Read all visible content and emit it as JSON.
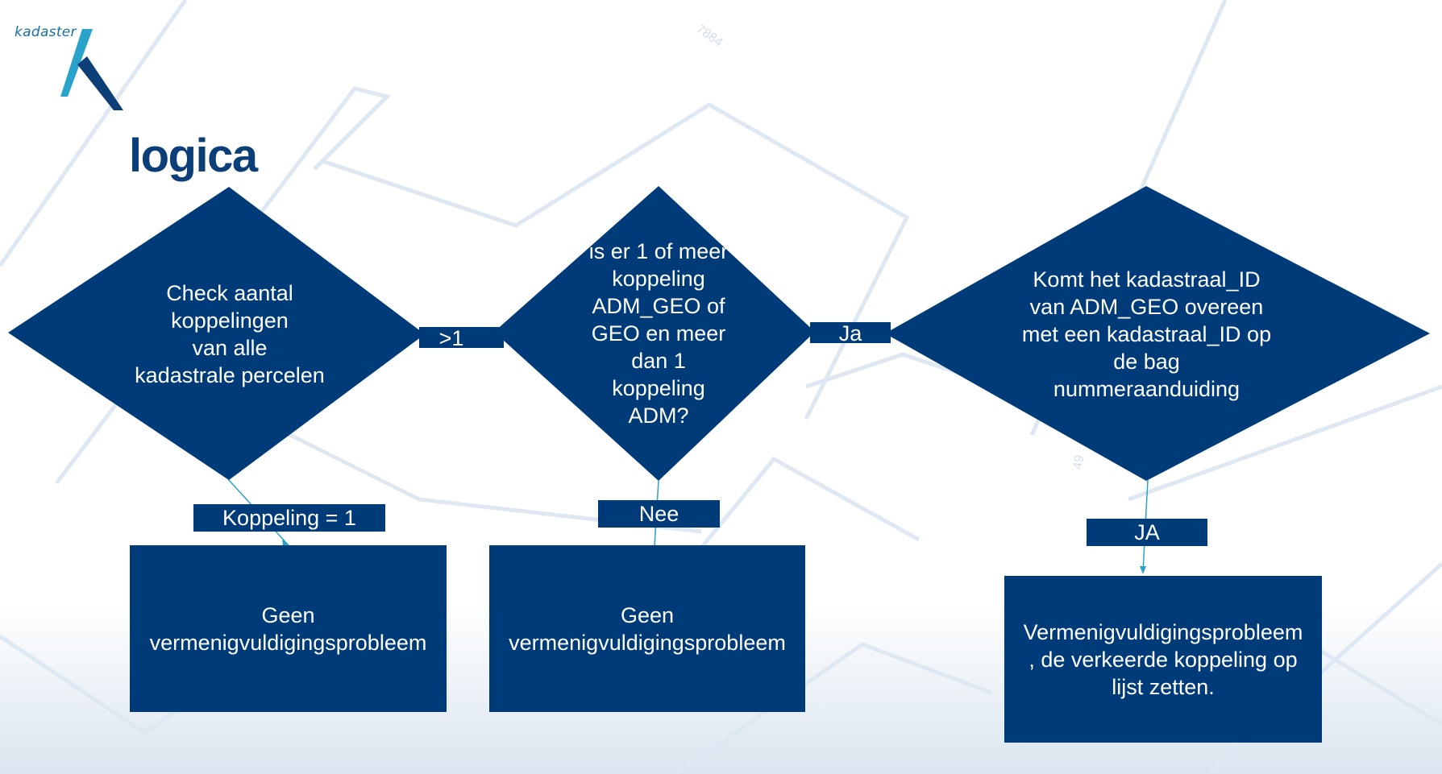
{
  "brand": {
    "logo_text": "kadaster"
  },
  "page": {
    "title": "logica"
  },
  "watermarks": [
    "7884",
    "49"
  ],
  "diagram": {
    "decision_1": {
      "lines": [
        "Check aantal",
        "koppelingen",
        "van alle",
        "kadastrale percelen"
      ]
    },
    "decision_2": {
      "lines": [
        "is er 1 of meer",
        "koppeling",
        "ADM_GEO of",
        "GEO en meer",
        "dan 1",
        "koppeling",
        "ADM?"
      ]
    },
    "decision_3": {
      "lines": [
        "Komt het kadastraal_ID",
        "van ADM_GEO overeen",
        "met een kadastraal_ID op",
        "de bag",
        "nummeraanduiding"
      ]
    },
    "edge_labels": {
      "gt1": ">1",
      "ja": "Ja",
      "koppeling": "Koppeling = 1",
      "nee": "Nee",
      "ja_caps": "JA"
    },
    "outcome_1": {
      "lines": [
        "Geen",
        "vermenigvuldigingsprobleem"
      ]
    },
    "outcome_2": {
      "lines": [
        "Geen",
        "vermenigvuldigingsprobleem"
      ]
    },
    "outcome_3": {
      "lines": [
        "Vermenigvuldigingsprobleem",
        ", de verkeerde koppeling op",
        "lijst zetten."
      ]
    }
  },
  "colors": {
    "shape_fill": "#003b79",
    "title": "#0c3e78",
    "connector": "#29a3c9",
    "logo_dark": "#0c3e78",
    "logo_light": "#29a3c9",
    "bg_lines": "#d9e6f1"
  }
}
